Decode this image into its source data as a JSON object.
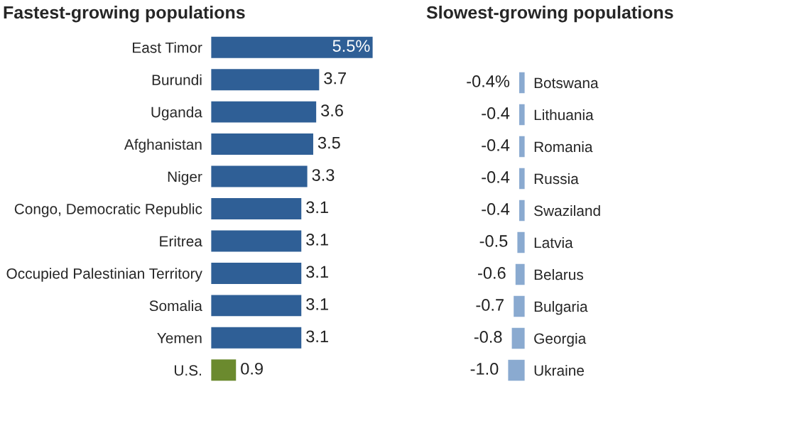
{
  "chart_data": [
    {
      "type": "bar",
      "orientation": "horizontal",
      "title": "Fastest-growing populations",
      "tick_labels": "y",
      "categories": [
        "East Timor",
        "Burundi",
        "Uganda",
        "Afghanistan",
        "Niger",
        "Congo, Democratic Republic",
        "Eritrea",
        "Occupied Palestinian Territory",
        "Somalia",
        "Yemen",
        "U.S."
      ],
      "values": [
        5.5,
        3.7,
        3.6,
        3.5,
        3.3,
        3.1,
        3.1,
        3.1,
        3.1,
        3.1,
        0.9
      ],
      "colors": [
        "#2f5f96",
        "#2f5f96",
        "#2f5f96",
        "#2f5f96",
        "#2f5f96",
        "#2f5f96",
        "#2f5f96",
        "#2f5f96",
        "#2f5f96",
        "#2f5f96",
        "#6b8a2e"
      ],
      "value_labels": [
        "5.5%",
        "3.7",
        "3.6",
        "3.5",
        "3.3",
        "3.1",
        "3.1",
        "3.1",
        "3.1",
        "3.1",
        "0.9"
      ]
    },
    {
      "type": "bar",
      "orientation": "horizontal",
      "title": "Slowest-growing populations",
      "tick_labels": "y",
      "categories": [
        "Botswana",
        "Lithuania",
        "Romania",
        "Russia",
        "Swaziland",
        "Latvia",
        "Belarus",
        "Bulgaria",
        "Georgia",
        "Ukraine"
      ],
      "values": [
        -0.4,
        -0.4,
        -0.4,
        -0.4,
        -0.4,
        -0.5,
        -0.6,
        -0.7,
        -0.8,
        -1.0
      ],
      "colors": [
        "#8aaad0",
        "#8aaad0",
        "#8aaad0",
        "#8aaad0",
        "#8aaad0",
        "#8aaad0",
        "#8aaad0",
        "#8aaad0",
        "#8aaad0",
        "#8aaad0"
      ],
      "value_labels": [
        "-0.4%",
        "-0.4",
        "-0.4",
        "-0.4",
        "-0.4",
        "-0.5",
        "-0.6",
        "-0.7",
        "-0.8",
        "-1.0"
      ]
    }
  ]
}
